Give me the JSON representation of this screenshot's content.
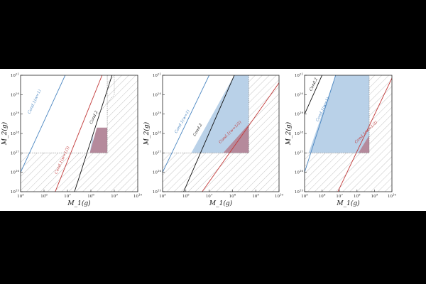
{
  "chart_data": [
    {
      "type": "line",
      "xlabel": "M_1(g)",
      "ylabel": "M_2(g)",
      "xscale": "log",
      "yscale": "log",
      "xlim": [
        100000.0,
        10000000000.0
      ],
      "ylim": [
        1000000000000000.0,
        1e+21
      ],
      "x_ticks": [
        "10^5",
        "10^6",
        "10^7",
        "10^8",
        "10^9",
        "10^10"
      ],
      "y_ticks": [
        "10^15",
        "10^16",
        "10^17",
        "10^18",
        "10^19",
        "10^20",
        "10^21"
      ],
      "threshold_x": 500000000.0,
      "threshold_y": 1e+17,
      "hatched_region": "below y=1e17 and right of x=5e8",
      "blue_region": [
        [
          90000000.0,
          1e+17
        ],
        [
          125000000.0,
          1e+18
        ],
        [
          125000000.0,
          1e+17
        ]
      ],
      "red_region": [
        [
          90000000.0,
          1e+17
        ],
        [
          180000000.0,
          2e+18
        ],
        [
          500000000.0,
          2e+18
        ],
        [
          500000000.0,
          1e+17
        ]
      ],
      "series": [
        {
          "name": "Cond.1(w=1)",
          "color": "#4a86c1",
          "points": [
            [
              100000.0,
              1e+16
            ],
            [
              8000000.0,
              1e+21
            ]
          ],
          "label_at": [
            250000.0,
            1e+19
          ],
          "angle": -65
        },
        {
          "name": "Cond.2",
          "color": "#111111",
          "points": [
            [
              20000000.0,
              1000000000000000.0
            ],
            [
              800000000.0,
              1e+21
            ]
          ],
          "label_at": [
            110000000.0,
            3e+18
          ],
          "angle": -65
        },
        {
          "name": "Cond.1(w=1/3)",
          "color": "#c23a3a",
          "points": [
            [
              3000000.0,
              1000000000000000.0
            ],
            [
              300000000.0,
              1e+21
            ]
          ],
          "label_at": [
            3500000.0,
            8000000000000000.0
          ],
          "angle": -65
        },
        {
          "name": "",
          "color": "#999999",
          "dashed": true,
          "points": [
            [
              200000000.0,
              1e+19
            ],
            [
              1000000000.0,
              1e+20
            ],
            [
              1000000000.0,
              1e+21
            ]
          ]
        },
        {
          "name": "",
          "color": "#777777",
          "dashed": true,
          "points": [
            [
              100000.0,
              1e+17
            ],
            [
              500000000.0,
              1e+17
            ],
            [
              500000000.0,
              1e+21
            ]
          ]
        }
      ]
    },
    {
      "type": "line",
      "xlabel": "M_1(g)",
      "ylabel": "M_2(g)",
      "xscale": "log",
      "yscale": "log",
      "xlim": [
        100000.0,
        10000000000.0
      ],
      "ylim": [
        1000000000000000.0,
        1e+21
      ],
      "x_ticks": [
        "10^5",
        "10^6",
        "10^7",
        "10^8",
        "10^9",
        "10^10"
      ],
      "y_ticks": [
        "10^15",
        "10^16",
        "10^17",
        "10^18",
        "10^19",
        "10^20",
        "10^21"
      ],
      "threshold_x": 500000000.0,
      "threshold_y": 1e+17,
      "hatched_region": "below y=1e17 and right of x=5e8",
      "blue_region": [
        [
          1700000.0,
          1e+17
        ],
        [
          120000000.0,
          1e+21
        ],
        [
          500000000.0,
          1e+21
        ],
        [
          500000000.0,
          1e+17
        ]
      ],
      "red_region": [
        [
          40000000.0,
          1e+17
        ],
        [
          500000000.0,
          3e+18
        ],
        [
          500000000.0,
          1e+17
        ]
      ],
      "series": [
        {
          "name": "Cond.1(w=1)",
          "color": "#4a86c1",
          "points": [
            [
              100000.0,
              1e+16
            ],
            [
              10000000.0,
              1e+21
            ]
          ],
          "label_at": [
            400000.0,
            1e+18
          ],
          "angle": -60
        },
        {
          "name": "Cond.2",
          "color": "#111111",
          "points": [
            [
              800000.0,
              1000000000000000.0
            ],
            [
              120000000.0,
              1e+21
            ]
          ],
          "label_at": [
            2500000.0,
            7e+17
          ],
          "angle": -60
        },
        {
          "name": "Cond.1(w=1/3)",
          "color": "#c23a3a",
          "points": [
            [
              5000000.0,
              1000000000000000.0
            ],
            [
              17000000000.0,
              1e+21
            ]
          ],
          "label_at": [
            30000000.0,
            3e+17
          ],
          "angle": -45
        },
        {
          "name": "",
          "color": "#777777",
          "dashed": true,
          "points": [
            [
              100000.0,
              1e+17
            ],
            [
              500000000.0,
              1e+17
            ],
            [
              500000000.0,
              1e+21
            ]
          ]
        }
      ]
    },
    {
      "type": "line",
      "xlabel": "M_1(g)",
      "ylabel": "M_2(g)",
      "xscale": "log",
      "yscale": "log",
      "xlim": [
        100000.0,
        10000000000.0
      ],
      "ylim": [
        1000000000000000.0,
        1e+21
      ],
      "x_ticks": [
        "10^5",
        "10^6",
        "10^7",
        "10^8",
        "10^9",
        "10^10"
      ],
      "y_ticks": [
        "10^15",
        "10^16",
        "10^17",
        "10^18",
        "10^19",
        "10^20",
        "10^21"
      ],
      "threshold_x": 500000000.0,
      "threshold_y": 1e+17,
      "hatched_region": "below y=1e17 and right of x=5e8",
      "blue_region": [
        [
          170000.0,
          1e+17
        ],
        [
          6000000.0,
          1e+21
        ],
        [
          500000000.0,
          1e+21
        ],
        [
          500000000.0,
          1e+17
        ]
      ],
      "red_region": [
        [
          120000000.0,
          1e+17
        ],
        [
          500000000.0,
          8e+17
        ],
        [
          500000000.0,
          1e+17
        ]
      ],
      "series": [
        {
          "name": "Cond.2",
          "color": "#111111",
          "points": [
            [
              100000.0,
              1e+19
            ],
            [
              1000000.0,
              1e+21
            ]
          ],
          "label_at": [
            250000.0,
            1.5e+20
          ],
          "angle": -65
        },
        {
          "name": "Cond.1(w=1)",
          "color": "#4a86c1",
          "points": [
            [
              100000.0,
              1e+16
            ],
            [
              6000000.0,
              1e+21
            ]
          ],
          "label_at": [
            600000.0,
            4e+18
          ],
          "angle": -65
        },
        {
          "name": "Cond.1(w=1/3)",
          "color": "#c23a3a",
          "points": [
            [
              8000000.0,
              1000000000000000.0
            ],
            [
              12000000000.0,
              1e+21
            ]
          ],
          "label_at": [
            90000000.0,
            3e+17
          ],
          "angle": -45
        },
        {
          "name": "",
          "color": "#777777",
          "dashed": true,
          "points": [
            [
              100000.0,
              1e+17
            ],
            [
              500000000.0,
              1e+17
            ],
            [
              500000000.0,
              1e+21
            ]
          ]
        }
      ]
    }
  ]
}
